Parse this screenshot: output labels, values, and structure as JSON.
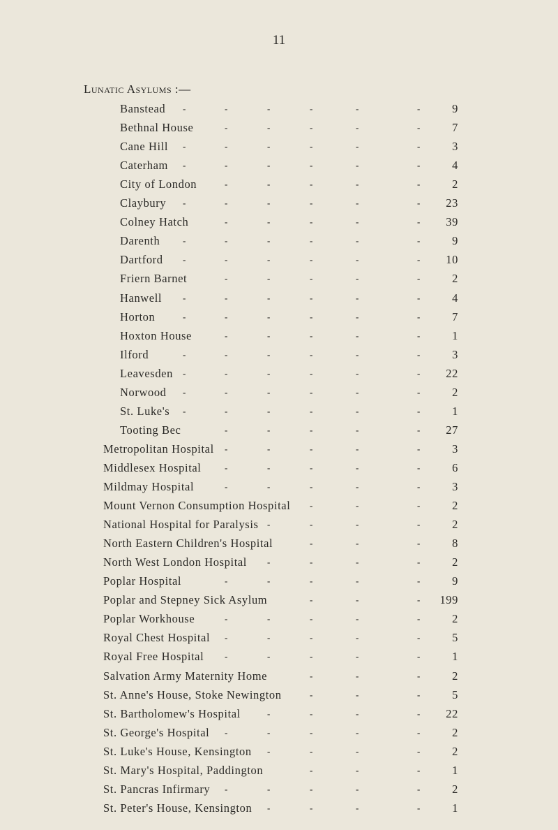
{
  "page_number": "11",
  "section_heading": "Lunatic Asylums :—",
  "asylums": [
    {
      "name": "Banstead",
      "count": "9"
    },
    {
      "name": "Bethnal House",
      "count": "7"
    },
    {
      "name": "Cane Hill",
      "count": "3"
    },
    {
      "name": "Caterham",
      "count": "4"
    },
    {
      "name": "City of London",
      "count": "2"
    },
    {
      "name": "Claybury",
      "count": "23"
    },
    {
      "name": "Colney Hatch",
      "count": "39"
    },
    {
      "name": "Darenth",
      "count": "9"
    },
    {
      "name": "Dartford",
      "count": "10"
    },
    {
      "name": "Friern Barnet",
      "count": "2"
    },
    {
      "name": "Hanwell",
      "count": "4"
    },
    {
      "name": "Horton",
      "count": "7"
    },
    {
      "name": "Hoxton House",
      "count": "1"
    },
    {
      "name": "Ilford",
      "count": "3"
    },
    {
      "name": "Leavesden",
      "count": "22"
    },
    {
      "name": "Norwood",
      "count": "2"
    },
    {
      "name": "St. Luke's",
      "count": "1"
    },
    {
      "name": "Tooting Bec",
      "count": "27"
    }
  ],
  "institutions": [
    {
      "name": "Metropolitan Hospital",
      "count": "3"
    },
    {
      "name": "Middlesex Hospital",
      "count": "6"
    },
    {
      "name": "Mildmay Hospital",
      "count": "3"
    },
    {
      "name": "Mount Vernon Consumption Hospital",
      "count": "2"
    },
    {
      "name": "National Hospital for Paralysis",
      "count": "2"
    },
    {
      "name": "North Eastern Children's Hospital",
      "count": "8"
    },
    {
      "name": "North West London Hospital",
      "count": "2"
    },
    {
      "name": "Poplar Hospital",
      "count": "9"
    },
    {
      "name": "Poplar and Stepney Sick Asylum",
      "count": "199"
    },
    {
      "name": "Poplar Workhouse",
      "count": "2"
    },
    {
      "name": "Royal Chest Hospital",
      "count": "5"
    },
    {
      "name": "Royal Free Hospital",
      "count": "1"
    },
    {
      "name": "Salvation Army Maternity Home",
      "count": "2"
    },
    {
      "name": "St. Anne's House, Stoke Newington",
      "count": "5"
    },
    {
      "name": "St. Bartholomew's Hospital",
      "count": "22"
    },
    {
      "name": "St. George's Hospital",
      "count": "2"
    },
    {
      "name": "St. Luke's House, Kensington",
      "count": "2"
    },
    {
      "name": "St. Mary's Hospital, Paddington",
      "count": "1"
    },
    {
      "name": "St. Pancras Infirmary",
      "count": "2"
    },
    {
      "name": "St. Peter's House, Kensington",
      "count": "1"
    }
  ]
}
